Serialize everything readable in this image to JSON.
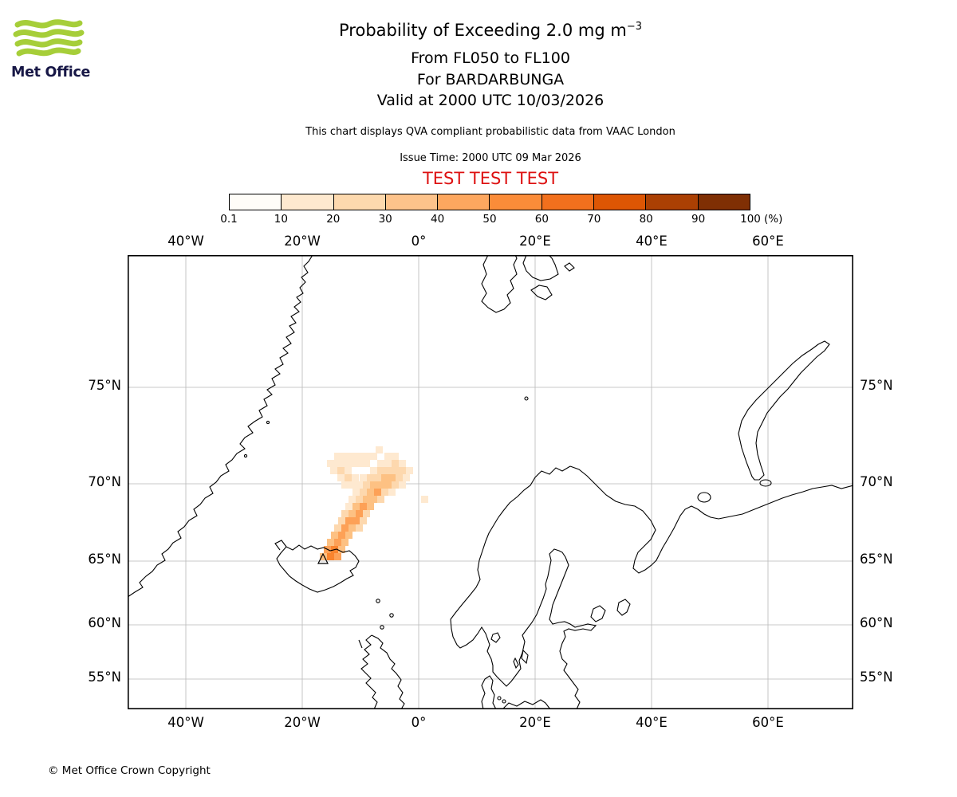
{
  "colors": {
    "test_banner": "#dd1111",
    "logo_green": "#a6ce39",
    "logo_text": "#171746",
    "grid": "#b8b8b8",
    "coast": "#000000"
  },
  "header": {
    "logo_label": "Met Office",
    "title": "Probability of Exceeding 2.0 mg m",
    "title_sup": "−3",
    "subtitle_fl": "From FL050 to FL100",
    "subtitle_volcano": "For BARDARBUNGA",
    "subtitle_valid": "Valid at 2000 UTC 10/03/2026",
    "qva_note": "This chart displays QVA compliant probabilistic data from VAAC London",
    "issue_time": "Issue Time: 2000 UTC 09 Mar 2026",
    "test_banner": "TEST TEST TEST"
  },
  "colorbar": {
    "ticks": [
      "0.1",
      "10",
      "20",
      "30",
      "40",
      "50",
      "60",
      "70",
      "80",
      "90",
      "100"
    ],
    "unit": "(%)",
    "colors": [
      "#fffdf8",
      "#fee9cf",
      "#fdd9ae",
      "#fdc38b",
      "#fda75f",
      "#fb8c39",
      "#f2701d",
      "#dd5604",
      "#ab4003",
      "#7f2f04"
    ]
  },
  "map": {
    "lon_labels": [
      "40°W",
      "20°W",
      "0°",
      "20°E",
      "40°E",
      "60°E"
    ],
    "lat_labels": [
      "75°N",
      "70°N",
      "65°N",
      "60°N",
      "55°N"
    ]
  },
  "plume": {
    "cell_size": 9,
    "colors": {
      "1": "#fee9d0",
      "2": "#fdd8ae",
      "3": "#fdc183",
      "4": "#fda157",
      "5": "#f9842e"
    },
    "cells": [
      [
        241,
        374,
        3
      ],
      [
        250,
        374,
        5
      ],
      [
        259,
        374,
        4
      ],
      [
        246,
        365,
        4
      ],
      [
        255,
        365,
        5
      ],
      [
        264,
        365,
        3
      ],
      [
        250,
        356,
        3
      ],
      [
        259,
        356,
        4
      ],
      [
        268,
        356,
        3
      ],
      [
        255,
        347,
        3
      ],
      [
        264,
        347,
        4
      ],
      [
        273,
        347,
        3
      ],
      [
        259,
        338,
        2
      ],
      [
        268,
        338,
        4
      ],
      [
        277,
        338,
        3
      ],
      [
        286,
        338,
        2
      ],
      [
        264,
        329,
        2
      ],
      [
        273,
        329,
        4
      ],
      [
        282,
        329,
        4
      ],
      [
        291,
        329,
        2
      ],
      [
        268,
        320,
        2
      ],
      [
        277,
        320,
        3
      ],
      [
        286,
        320,
        4
      ],
      [
        295,
        320,
        2
      ],
      [
        273,
        311,
        1
      ],
      [
        282,
        311,
        3
      ],
      [
        291,
        311,
        4
      ],
      [
        300,
        311,
        3
      ],
      [
        277,
        302,
        1
      ],
      [
        286,
        302,
        2
      ],
      [
        295,
        302,
        3
      ],
      [
        304,
        302,
        3
      ],
      [
        313,
        302,
        2
      ],
      [
        282,
        293,
        1
      ],
      [
        291,
        293,
        2
      ],
      [
        300,
        293,
        3
      ],
      [
        309,
        293,
        4
      ],
      [
        318,
        293,
        2
      ],
      [
        327,
        293,
        1
      ],
      [
        286,
        284,
        1
      ],
      [
        295,
        284,
        2
      ],
      [
        304,
        284,
        3
      ],
      [
        313,
        284,
        3
      ],
      [
        322,
        284,
        3
      ],
      [
        331,
        284,
        2
      ],
      [
        340,
        284,
        1
      ],
      [
        291,
        275,
        1
      ],
      [
        300,
        275,
        2
      ],
      [
        309,
        275,
        2
      ],
      [
        318,
        275,
        3
      ],
      [
        327,
        275,
        3
      ],
      [
        336,
        275,
        2
      ],
      [
        345,
        275,
        1
      ],
      [
        304,
        266,
        1
      ],
      [
        313,
        266,
        2
      ],
      [
        322,
        266,
        2
      ],
      [
        331,
        266,
        2
      ],
      [
        340,
        266,
        2
      ],
      [
        349,
        266,
        1
      ],
      [
        313,
        257,
        1
      ],
      [
        322,
        257,
        1
      ],
      [
        331,
        257,
        2
      ],
      [
        340,
        257,
        1
      ],
      [
        322,
        248,
        1
      ],
      [
        331,
        248,
        1
      ],
      [
        277,
        284,
        1
      ],
      [
        268,
        284,
        1
      ],
      [
        263,
        275,
        1
      ],
      [
        272,
        275,
        2
      ],
      [
        281,
        275,
        1
      ],
      [
        254,
        266,
        1
      ],
      [
        263,
        266,
        2
      ],
      [
        272,
        266,
        1
      ],
      [
        250,
        257,
        1
      ],
      [
        259,
        257,
        1
      ],
      [
        268,
        257,
        1
      ],
      [
        277,
        257,
        1
      ],
      [
        286,
        257,
        1
      ],
      [
        295,
        257,
        1
      ],
      [
        259,
        248,
        1
      ],
      [
        268,
        248,
        1
      ],
      [
        277,
        248,
        1
      ],
      [
        286,
        248,
        1
      ],
      [
        295,
        248,
        1
      ],
      [
        304,
        248,
        1
      ],
      [
        368,
        302,
        1
      ],
      [
        311,
        240,
        1
      ]
    ]
  },
  "footer": {
    "copyright": "© Met Office Crown Copyright"
  }
}
